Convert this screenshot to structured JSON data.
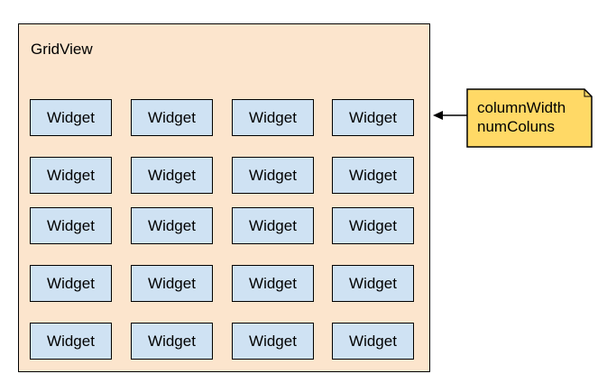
{
  "diagram": {
    "container": {
      "title": "GridView",
      "fill_color": "#fce5cd",
      "rows": [
        [
          "Widget",
          "Widget",
          "Widget",
          "Widget"
        ],
        [
          "Widget",
          "Widget",
          "Widget",
          "Widget"
        ],
        [
          "Widget",
          "Widget",
          "Widget",
          "Widget"
        ],
        [
          "Widget",
          "Widget",
          "Widget",
          "Widget"
        ],
        [
          "Widget",
          "Widget",
          "Widget",
          "Widget"
        ]
      ],
      "widget_fill_color": "#cfe2f3"
    },
    "note": {
      "lines": [
        "columnWidth",
        "numColuns"
      ],
      "fill_color": "#ffd966"
    },
    "arrow": {
      "from": "note",
      "to": "container"
    }
  }
}
